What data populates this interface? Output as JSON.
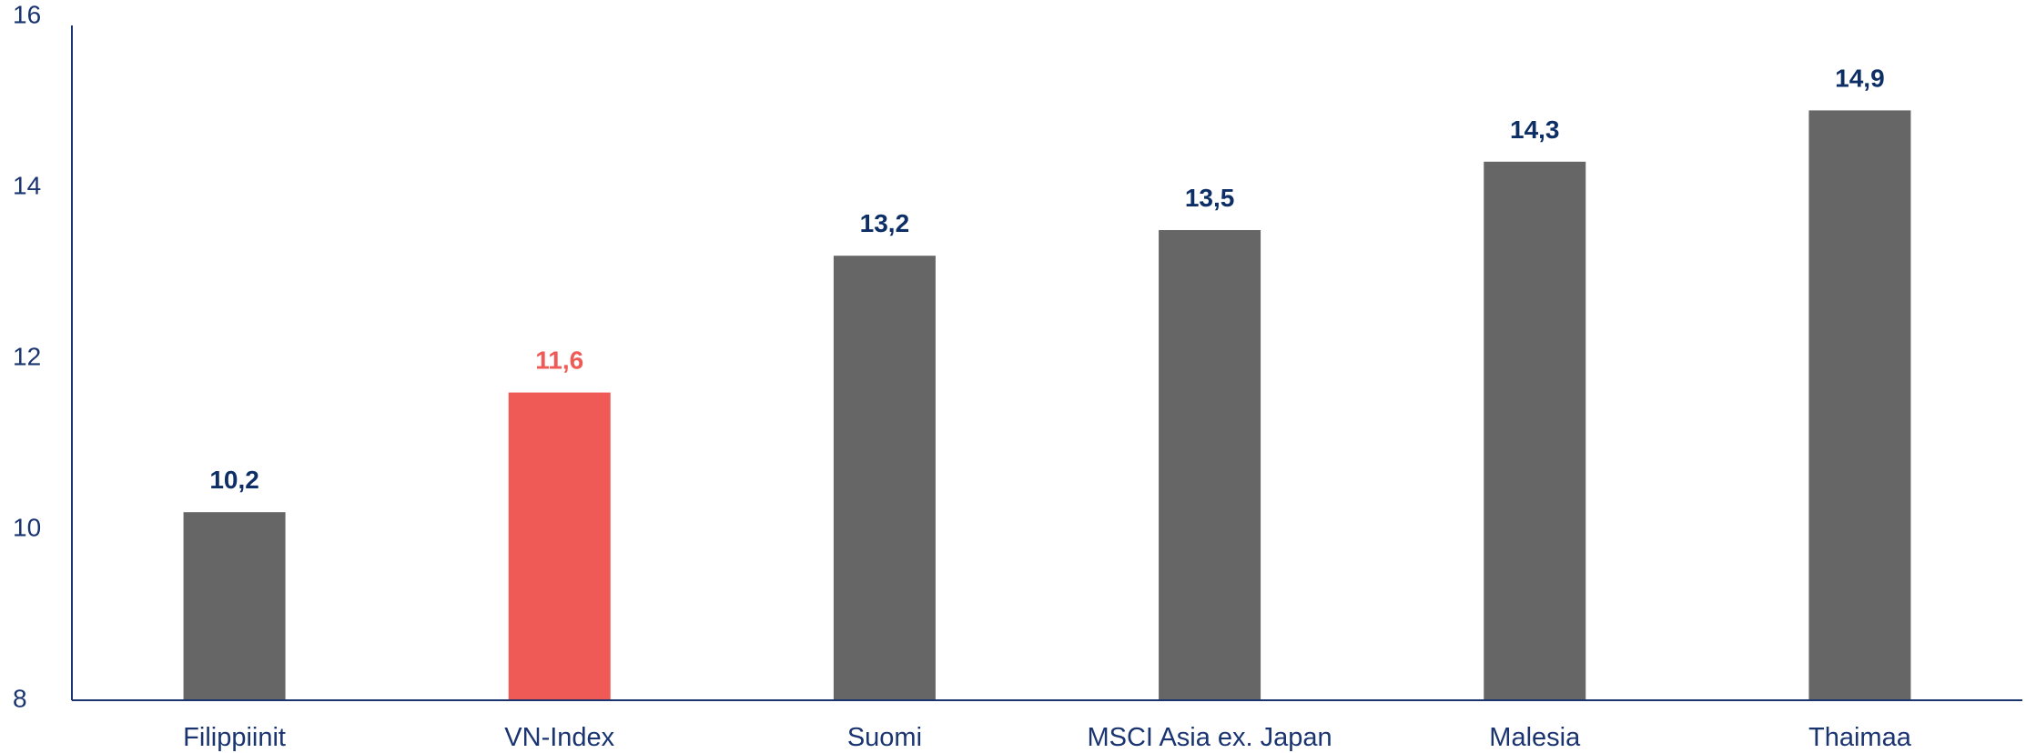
{
  "chart_data": {
    "type": "bar",
    "title": "",
    "xlabel": "",
    "ylabel": "",
    "categories": [
      "Filippiinit",
      "VN-Index",
      "Suomi",
      "MSCI Asia ex. Japan",
      "Malesia",
      "Thaimaa"
    ],
    "values": [
      10.2,
      11.6,
      13.2,
      13.5,
      14.3,
      14.9
    ],
    "value_labels": [
      "10,2",
      "11,6",
      "13,2",
      "13,5",
      "14,3",
      "14,9"
    ],
    "ylim": [
      8,
      16
    ],
    "yticks": [
      8,
      10,
      12,
      14,
      16
    ],
    "ytick_labels": [
      "8",
      "10",
      "12",
      "14",
      "16"
    ],
    "grid": false,
    "legend": "none",
    "colors": {
      "default_bar": "#666666",
      "highlight_bar": "#f05a56",
      "default_label": "#0e2f66",
      "highlight_label": "#f05a56",
      "axis": "#1a3470"
    },
    "highlight_index": 1
  }
}
